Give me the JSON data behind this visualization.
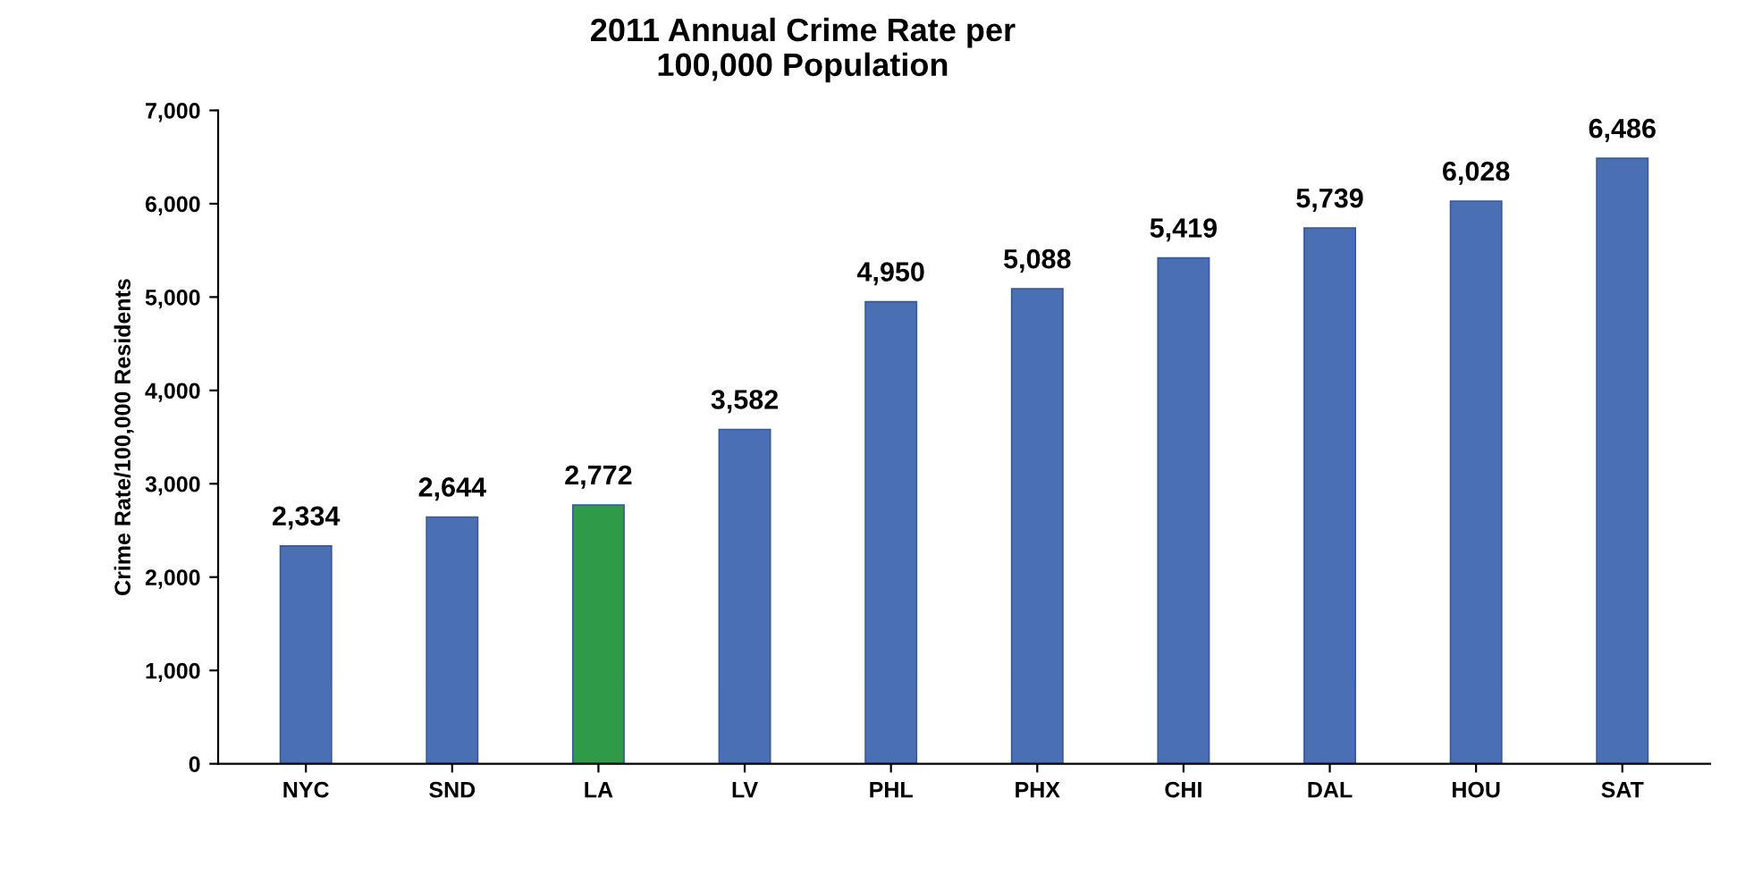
{
  "chart_data": {
    "type": "bar",
    "title": "2011 Annual Crime Rate per\n100,000 Population",
    "ylabel": "Crime Rate/100,000 Residents",
    "categories": [
      "NYC",
      "SND",
      "LA",
      "LV",
      "PHL",
      "PHX",
      "CHI",
      "DAL",
      "HOU",
      "SAT"
    ],
    "values": [
      2334,
      2644,
      2772,
      3582,
      4950,
      5088,
      5419,
      5739,
      6028,
      6486
    ],
    "colors": [
      "#4a6fb5",
      "#4a6fb5",
      "#2f9a48",
      "#4a6fb5",
      "#4a6fb5",
      "#4a6fb5",
      "#4a6fb5",
      "#4a6fb5",
      "#4a6fb5",
      "#4a6fb5"
    ],
    "value_labels": [
      "2,334",
      "2,644",
      "2,772",
      "3,582",
      "4,950",
      "5,088",
      "5,419",
      "5,739",
      "6,028",
      "6,486"
    ],
    "ylim": [
      0,
      7000
    ],
    "yticks": [
      0,
      {
        "value": 1000,
        "label": "1,000"
      },
      {
        "value": 2000,
        "label": "2,000"
      },
      {
        "value": 3000,
        "label": "3,000"
      },
      {
        "value": 4000,
        "label": "4,000"
      },
      {
        "value": 5000,
        "label": "5,000"
      },
      {
        "value": 6000,
        "label": "6,000"
      },
      {
        "value": 7000,
        "label": "7,000"
      }
    ],
    "grid": false,
    "legend": false
  }
}
